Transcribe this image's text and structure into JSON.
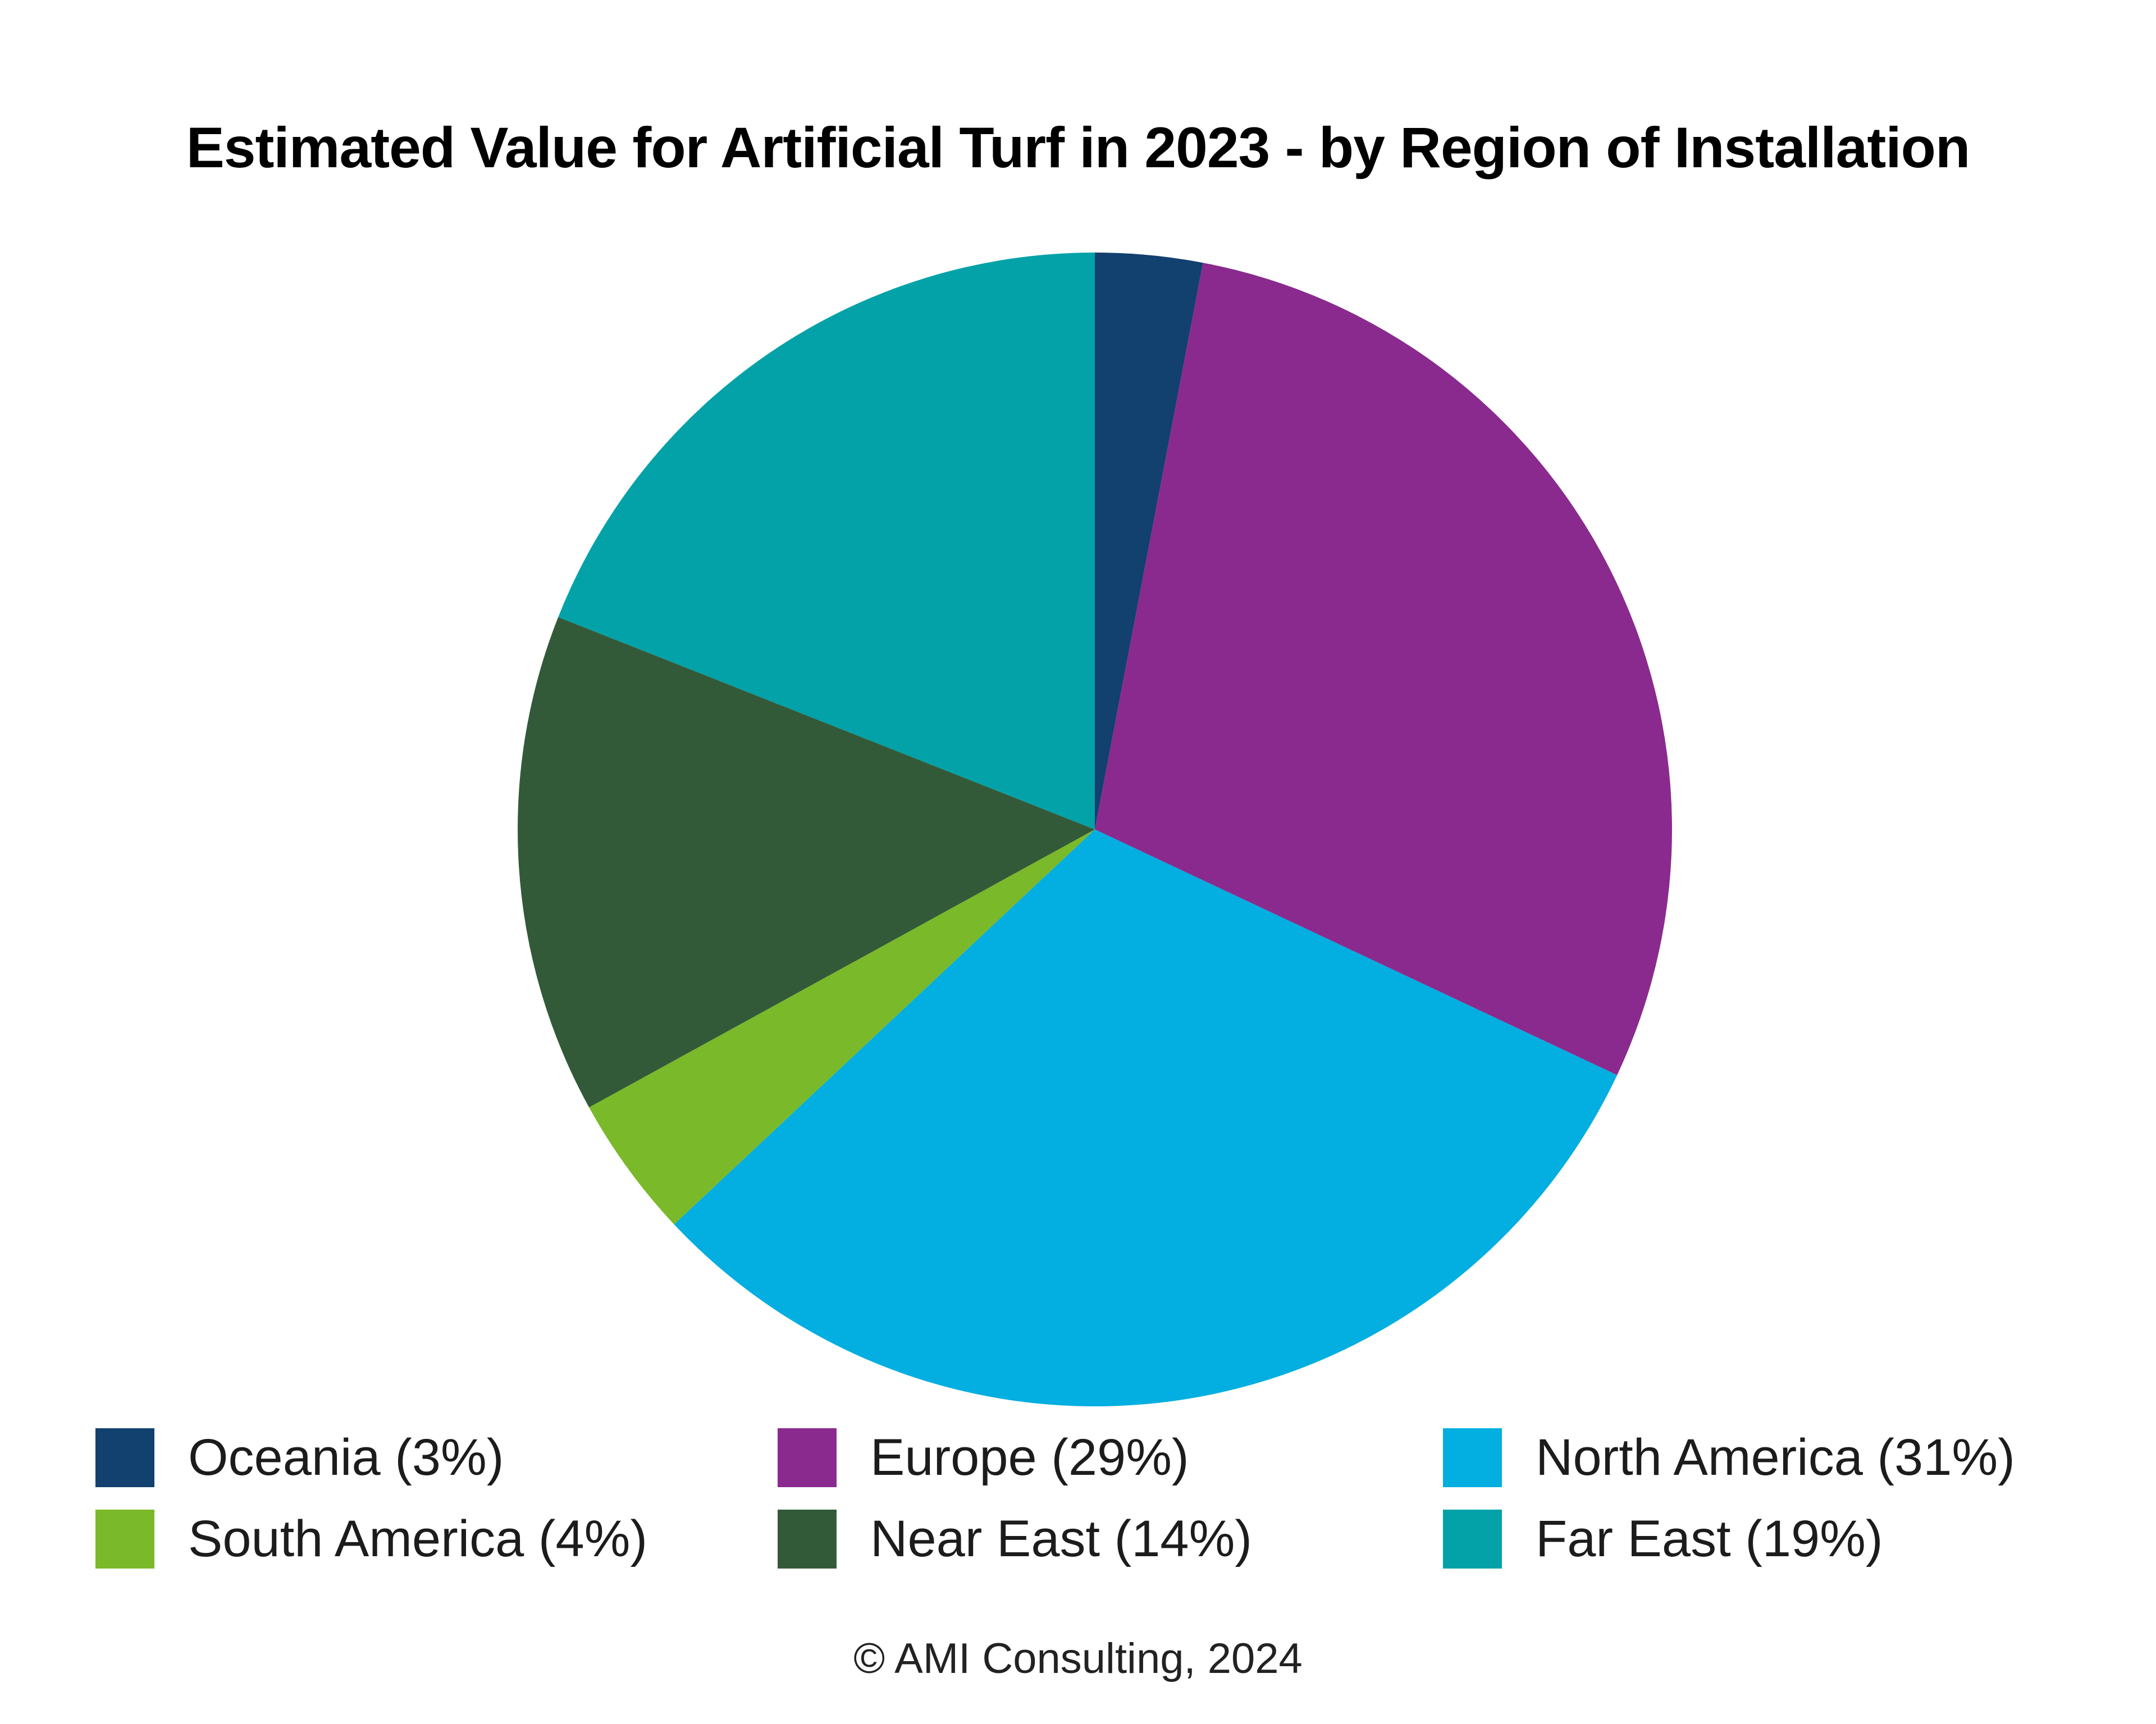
{
  "page": {
    "background": "#ffffff"
  },
  "footer": {
    "copyright": "© AMI Consulting, 2024"
  },
  "chart_data": {
    "type": "pie",
    "title": "Estimated Value for Artificial Turf in 2023 - by Region of Installation",
    "unit": "percent",
    "total": 100,
    "start_angle_deg": 0,
    "direction": "clockwise",
    "legend_position": "bottom",
    "legend_columns": 3,
    "series": [
      {
        "id": "oceania",
        "name": "Oceania",
        "value": 3,
        "label": "Oceania (3%)",
        "color": "#12406F"
      },
      {
        "id": "europe",
        "name": "Europe",
        "value": 29,
        "label": "Europe (29%)",
        "color": "#8A2A8E"
      },
      {
        "id": "north-america",
        "name": "North America",
        "value": 31,
        "label": "North America (31%)",
        "color": "#03AEE0"
      },
      {
        "id": "south-america",
        "name": "South America",
        "value": 4,
        "label": "South America (4%)",
        "color": "#7AB929"
      },
      {
        "id": "near-east",
        "name": "Near East",
        "value": 14,
        "label": "Near East (14%)",
        "color": "#335A38"
      },
      {
        "id": "far-east",
        "name": "Far East",
        "value": 19,
        "label": "Far East (19%)",
        "color": "#02A2A8"
      }
    ]
  }
}
